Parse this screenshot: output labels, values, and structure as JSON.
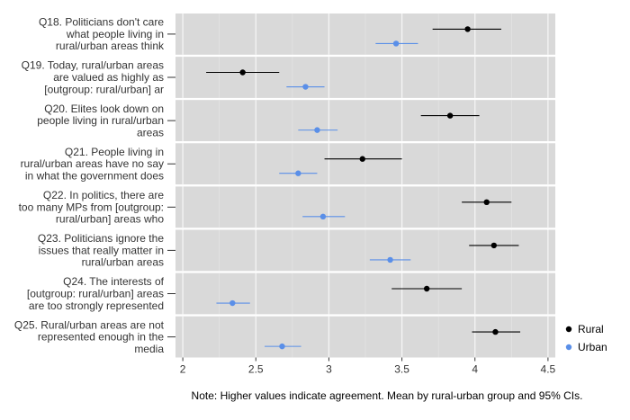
{
  "chart_data": {
    "type": "dot-interval",
    "note": "Note: Higher values indicate agreement. Mean by rural-urban group and 95% CIs.",
    "xlim": [
      1.95,
      4.55
    ],
    "x_ticks": [
      "2",
      "2.5",
      "3",
      "3.5",
      "4",
      "4.5"
    ],
    "x_tick_values": [
      2,
      2.5,
      3,
      3.5,
      4,
      4.5
    ],
    "grid": true,
    "legend_position": "right",
    "series": [
      {
        "name": "Rural",
        "color": "#000000"
      },
      {
        "name": "Urban",
        "color": "#5a8fe8"
      }
    ],
    "questions": [
      {
        "label": [
          "Q18. Politicians don't care",
          "what people living in",
          "rural/urban areas think"
        ],
        "rural": {
          "mean": 3.95,
          "low": 3.71,
          "high": 4.18
        },
        "urban": {
          "mean": 3.46,
          "low": 3.32,
          "high": 3.61
        }
      },
      {
        "label": [
          "Q19. Today, rural/urban areas",
          "are valued as highly as",
          "[outgroup: rural/urban] ar"
        ],
        "rural": {
          "mean": 2.41,
          "low": 2.16,
          "high": 2.66
        },
        "urban": {
          "mean": 2.84,
          "low": 2.71,
          "high": 2.97
        }
      },
      {
        "label": [
          "Q20. Elites look down on",
          "people living in rural/urban",
          "areas"
        ],
        "rural": {
          "mean": 3.83,
          "low": 3.63,
          "high": 4.03
        },
        "urban": {
          "mean": 2.92,
          "low": 2.79,
          "high": 3.06
        }
      },
      {
        "label": [
          "Q21. People living in",
          "rural/urban areas have no say",
          "in what the government does"
        ],
        "rural": {
          "mean": 3.23,
          "low": 2.97,
          "high": 3.5
        },
        "urban": {
          "mean": 2.79,
          "low": 2.66,
          "high": 2.92
        }
      },
      {
        "label": [
          "Q22. In politics, there are",
          "too many MPs from [outgroup:",
          "rural/urban] areas who"
        ],
        "rural": {
          "mean": 4.08,
          "low": 3.91,
          "high": 4.25
        },
        "urban": {
          "mean": 2.96,
          "low": 2.82,
          "high": 3.11
        }
      },
      {
        "label": [
          "Q23. Politicians ignore the",
          "issues that really matter in",
          "rural/urban areas"
        ],
        "rural": {
          "mean": 4.13,
          "low": 3.96,
          "high": 4.3
        },
        "urban": {
          "mean": 3.42,
          "low": 3.28,
          "high": 3.56
        }
      },
      {
        "label": [
          "Q24. The interests of",
          "[outgroup: rural/urban] areas",
          "are too strongly represented"
        ],
        "rural": {
          "mean": 3.67,
          "low": 3.43,
          "high": 3.91
        },
        "urban": {
          "mean": 2.34,
          "low": 2.23,
          "high": 2.46
        }
      },
      {
        "label": [
          "Q25. Rural/urban areas are not",
          "represented enough in the",
          "media"
        ],
        "rural": {
          "mean": 4.14,
          "low": 3.98,
          "high": 4.31
        },
        "urban": {
          "mean": 2.68,
          "low": 2.56,
          "high": 2.81
        }
      }
    ]
  }
}
